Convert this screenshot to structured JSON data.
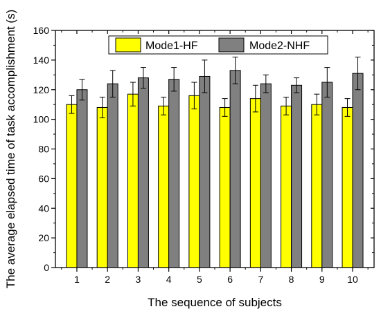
{
  "chart_data": {
    "type": "bar",
    "xlabel": "The sequence of subjects",
    "ylabel": "The average elapsed time of task accomplishment (s)",
    "ylim": [
      0,
      160
    ],
    "yticks": [
      0,
      20,
      40,
      60,
      80,
      100,
      120,
      140,
      160
    ],
    "grid": false,
    "legend_position": "top-center",
    "categories": [
      "1",
      "2",
      "3",
      "4",
      "5",
      "6",
      "7",
      "8",
      "9",
      "10"
    ],
    "series": [
      {
        "name": "Mode1-HF",
        "color": "#ffff00",
        "values": [
          110,
          108,
          117,
          109,
          116,
          108,
          114,
          109,
          110,
          108
        ],
        "errors": [
          6,
          7,
          8,
          6,
          9,
          6,
          9,
          6,
          7,
          6
        ]
      },
      {
        "name": "Mode2-NHF",
        "color": "#808080",
        "values": [
          120,
          124,
          128,
          127,
          129,
          133,
          124,
          123,
          125,
          131
        ],
        "errors": [
          7,
          9,
          7,
          8,
          11,
          9,
          6,
          5,
          10,
          11
        ]
      }
    ]
  }
}
